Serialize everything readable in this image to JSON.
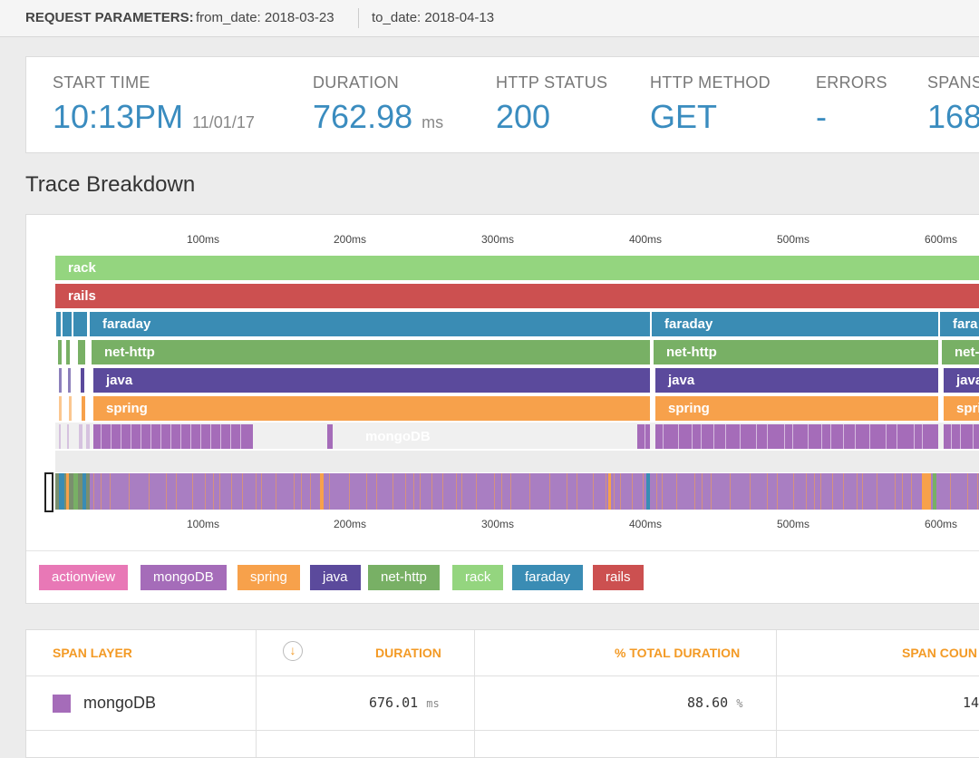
{
  "request_params": {
    "title": "REQUEST PARAMETERS:",
    "from_date": "from_date: 2018-03-23",
    "to_date": "to_date: 2018-04-13"
  },
  "summary": {
    "start_time": {
      "label": "START TIME",
      "value": "10:13PM",
      "sub": "11/01/17"
    },
    "duration": {
      "label": "DURATION",
      "value": "762.98",
      "unit": "ms"
    },
    "http_status": {
      "label": "HTTP STATUS",
      "value": "200"
    },
    "http_method": {
      "label": "HTTP METHOD",
      "value": "GET"
    },
    "errors": {
      "label": "ERRORS",
      "value": "-"
    },
    "spans": {
      "label": "SPANS",
      "value": "168"
    }
  },
  "trace": {
    "title": "Trace Breakdown",
    "axis_ticks": [
      "100ms",
      "200ms",
      "300ms",
      "400ms",
      "500ms",
      "600ms"
    ],
    "layers": [
      {
        "name": "rack",
        "color": "#94d57f"
      },
      {
        "name": "rails",
        "color": "#cc5050"
      },
      {
        "name": "faraday",
        "color": "#3a8cb4"
      },
      {
        "name": "net-http",
        "color": "#78b065"
      },
      {
        "name": "java",
        "color": "#5b4a9c"
      },
      {
        "name": "spring",
        "color": "#f7a14b"
      },
      {
        "name": "mongoDB",
        "color": "#a56cb9"
      }
    ],
    "segment_labels": {
      "faraday_1": "faraday",
      "faraday_2": "faraday",
      "faraday_3": "fara",
      "nethttp_1": "net-http",
      "nethttp_2": "net-http",
      "nethttp_3": "net-",
      "java_1": "java",
      "java_2": "java",
      "java_3": "java",
      "spring_1": "spring",
      "spring_2": "spring",
      "spring_3": "spri",
      "mongo_1": "mongoDB"
    },
    "legend": [
      {
        "name": "actionview",
        "color": "#e878b6"
      },
      {
        "name": "mongoDB",
        "color": "#a56cb9"
      },
      {
        "name": "spring",
        "color": "#f7a14b"
      },
      {
        "name": "java",
        "color": "#5b4a9c"
      },
      {
        "name": "net-http",
        "color": "#78b065"
      },
      {
        "name": "rack",
        "color": "#94d57f"
      },
      {
        "name": "faraday",
        "color": "#3a8cb4"
      },
      {
        "name": "rails",
        "color": "#cc5050"
      }
    ]
  },
  "table": {
    "headers": {
      "span_layer": "SPAN LAYER",
      "duration": "DURATION",
      "pct_total": "% TOTAL DURATION",
      "span_count": "SPAN COUN"
    },
    "rows": [
      {
        "layer": "mongoDB",
        "color": "#a56cb9",
        "duration": "676.01",
        "duration_unit": "ms",
        "pct": "88.60",
        "pct_unit": "%",
        "count": "14"
      }
    ]
  }
}
